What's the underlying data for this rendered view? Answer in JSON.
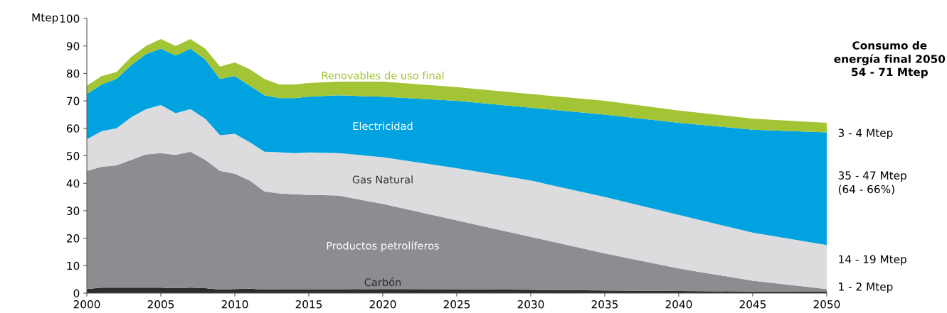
{
  "chart_data": {
    "type": "area",
    "stacked": true,
    "ylabel": "Mtep",
    "x": [
      2000,
      2001,
      2002,
      2003,
      2004,
      2005,
      2006,
      2007,
      2008,
      2009,
      2010,
      2011,
      2012,
      2013,
      2014,
      2015,
      2017,
      2020,
      2025,
      2030,
      2035,
      2040,
      2045,
      2050
    ],
    "series": [
      {
        "name": "Carbón",
        "color": "#2d2b2c",
        "values": [
          1.5,
          2,
          2,
          2,
          2,
          2,
          1.8,
          2,
          1.8,
          1.3,
          1.5,
          1.6,
          1.3,
          1.4,
          1.4,
          1.4,
          1.4,
          1.5,
          1.4,
          1.2,
          1.0,
          0.8,
          0.6,
          0.5
        ]
      },
      {
        "name": "Productos petrolíferos",
        "color": "#8d8c91",
        "values": [
          43,
          44,
          44.5,
          46.5,
          48.5,
          49,
          48.5,
          49.5,
          46.7,
          43.2,
          42,
          39.4,
          35.7,
          34.9,
          34.6,
          34.4,
          34.1,
          31,
          25.1,
          19.3,
          13.5,
          8.2,
          3.9,
          1.0
        ]
      },
      {
        "name": "Gas Natural",
        "color": "#dcdcde",
        "values": [
          11.5,
          13,
          13.5,
          15.5,
          16.5,
          17.5,
          15.2,
          15.5,
          15,
          13,
          14.5,
          14,
          14.5,
          15,
          15,
          15.4,
          15.5,
          17,
          19,
          20.5,
          20.5,
          19.5,
          17.5,
          16
        ]
      },
      {
        "name": "Electricidad",
        "color": "#00a3e0",
        "values": [
          16.5,
          17,
          18,
          19,
          20,
          20.5,
          21,
          22,
          21.5,
          20.5,
          21,
          20.5,
          20.5,
          19.7,
          20,
          20.3,
          21,
          22,
          24.5,
          26.5,
          30,
          33.5,
          37.5,
          41
        ]
      },
      {
        "name": "Renovables de uso final",
        "color": "#a3c434",
        "values": [
          3,
          3,
          2.5,
          3,
          3,
          3.5,
          3.5,
          3.5,
          4,
          4.5,
          5,
          6,
          6,
          5,
          5,
          5,
          5,
          5.5,
          5,
          5,
          5,
          4.5,
          4,
          3.5
        ]
      }
    ],
    "xlim": [
      2000,
      2050
    ],
    "xticks": [
      2000,
      2005,
      2010,
      2015,
      2020,
      2025,
      2030,
      2035,
      2040,
      2045,
      2050
    ],
    "ylim": [
      0,
      100
    ],
    "yticks": [
      0,
      10,
      20,
      30,
      40,
      50,
      60,
      70,
      80,
      90,
      100
    ],
    "grid": false,
    "legend": false,
    "annotations": [
      "Consumo de\nenergía final 2050\n54 - 71 Mtep",
      "3 - 4 Mtep",
      "35 - 47 Mtep\n(64 - 66%)",
      "14 - 19 Mtep",
      "1 - 2 Mtep"
    ]
  }
}
